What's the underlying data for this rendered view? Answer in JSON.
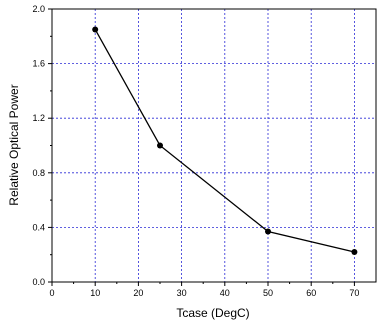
{
  "chart_data": {
    "type": "line",
    "title": "",
    "xlabel": "Tcase (DegC)",
    "ylabel": "Relative Optical Power",
    "xlim": [
      0,
      75
    ],
    "ylim": [
      0.0,
      2.0
    ],
    "xticks": [
      0,
      10,
      20,
      30,
      40,
      50,
      60,
      70
    ],
    "yticks": [
      "0.0",
      "0.4",
      "0.8",
      "1.2",
      "1.6",
      "2.0"
    ],
    "grid": true,
    "grid_color": "#2b2bd6",
    "line_color": "#000000",
    "marker": "filled-circle",
    "series": [
      {
        "x": [
          10,
          25,
          50,
          70
        ],
        "y": [
          1.85,
          1.0,
          0.37,
          0.22
        ]
      }
    ]
  }
}
